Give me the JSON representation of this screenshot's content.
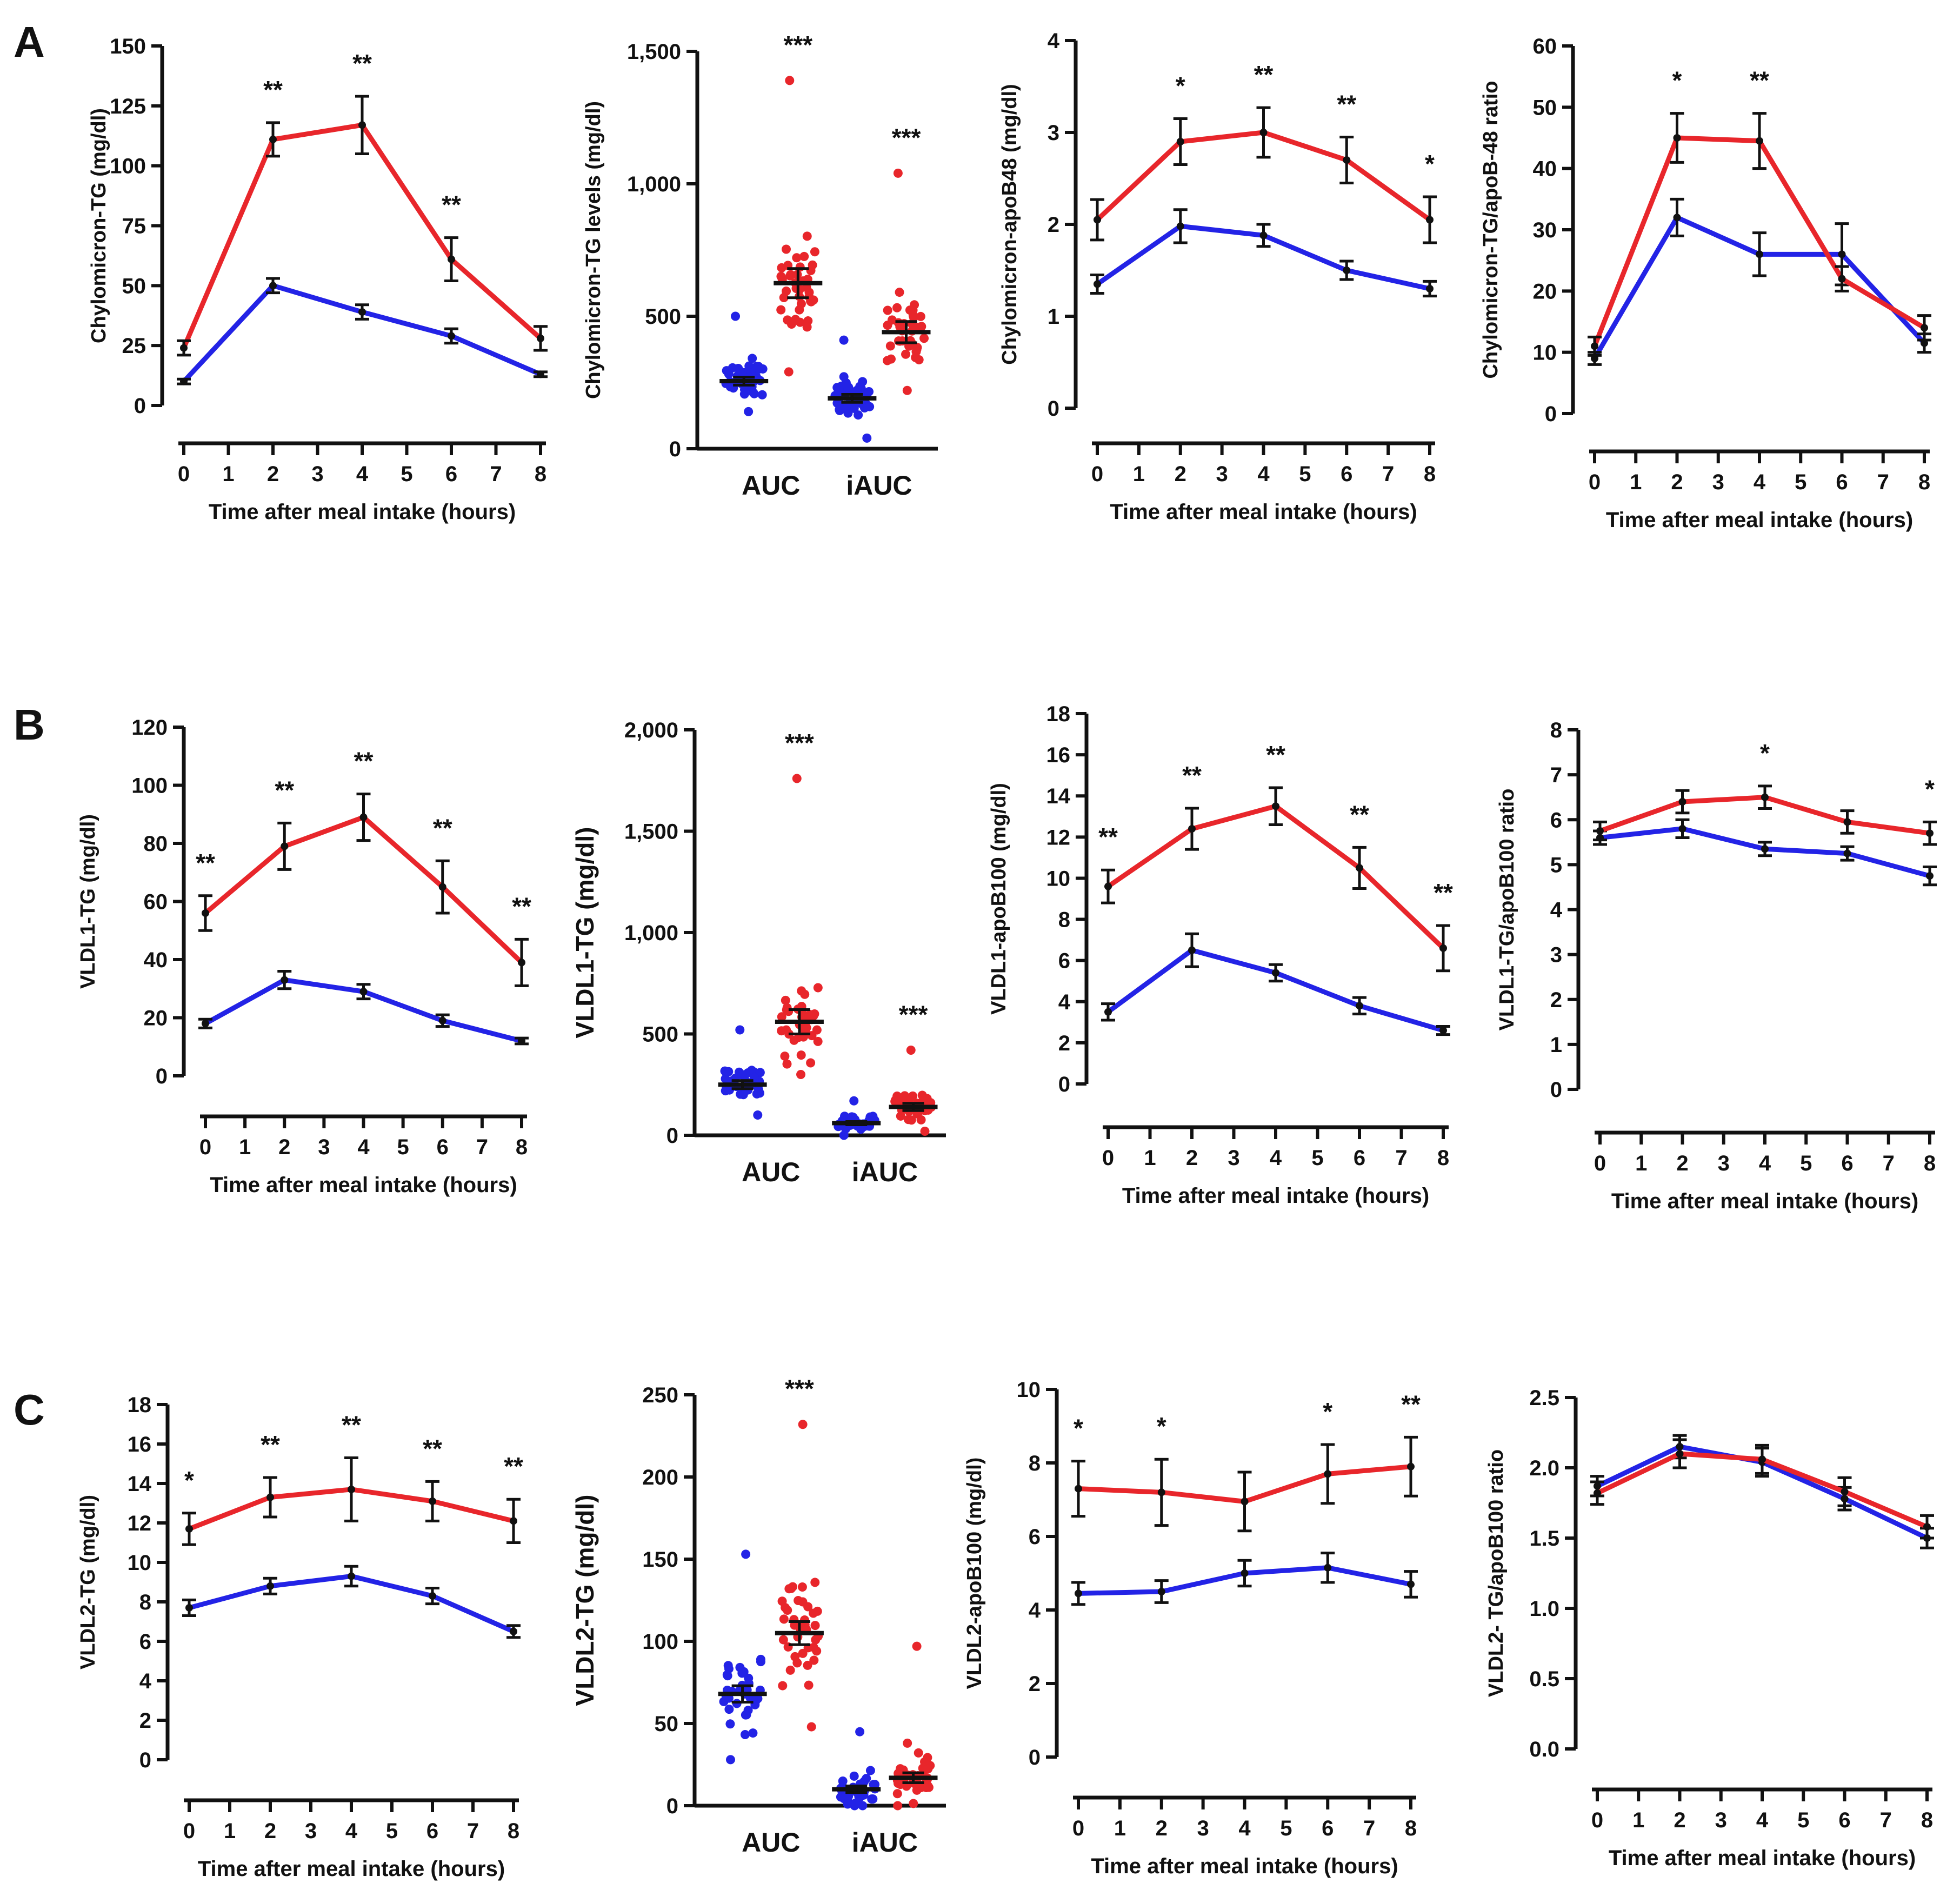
{
  "colors": {
    "group_red": "#e8262b",
    "group_blue": "#2323e6",
    "axis": "#111111"
  },
  "panel_labels": [
    "A",
    "B",
    "C"
  ],
  "chart_data": [
    {
      "id": "A1",
      "type": "line",
      "panel": "A",
      "ylabel": "Chylomicron-TG (mg/dl)",
      "xlabel": "Time after meal intake (hours)",
      "ylim": [
        0,
        150
      ],
      "yticks": [
        "0",
        "25",
        "50",
        "75",
        "100",
        "125",
        "150"
      ],
      "x": [
        0,
        2,
        4,
        6,
        8
      ],
      "xlim": [
        0,
        8
      ],
      "xticks": [
        "0",
        "1",
        "2",
        "3",
        "4",
        "5",
        "6",
        "7",
        "8"
      ],
      "series": [
        {
          "name": "red",
          "values": [
            24,
            111,
            117,
            61,
            28
          ],
          "err": [
            3,
            7,
            12,
            9,
            5
          ]
        },
        {
          "name": "blue",
          "values": [
            10,
            50,
            39,
            29,
            13
          ],
          "err": [
            1,
            3,
            3,
            3,
            1
          ]
        }
      ],
      "stars": [
        "",
        "**",
        "**",
        "**",
        ""
      ]
    },
    {
      "id": "A2",
      "type": "scatter",
      "panel": "A",
      "ylabel": "Chylomicron-TG levels (mg/dl)",
      "ylim": [
        0,
        1500
      ],
      "yticks": [
        "0",
        "500",
        "1,000",
        "1,500"
      ],
      "categories": [
        "AUC",
        "iAUC"
      ],
      "groups": [
        {
          "category": "AUC",
          "color": "blue",
          "mean": 255,
          "sem": 15,
          "spread": [
            140,
            500
          ]
        },
        {
          "category": "AUC",
          "color": "red",
          "mean": 625,
          "sem": 55,
          "spread": [
            290,
            1390
          ]
        },
        {
          "category": "iAUC",
          "color": "blue",
          "mean": 190,
          "sem": 15,
          "spread": [
            40,
            410
          ]
        },
        {
          "category": "iAUC",
          "color": "red",
          "mean": 440,
          "sem": 40,
          "spread": [
            220,
            1040
          ]
        }
      ],
      "stars": [
        "***",
        "***"
      ]
    },
    {
      "id": "A3",
      "type": "line",
      "panel": "A",
      "ylabel": "Chylomicron-apoB48 (mg/dl)",
      "xlabel": "Time after meal intake (hours)",
      "ylim": [
        0,
        4
      ],
      "yticks": [
        "0",
        "1",
        "2",
        "3",
        "4"
      ],
      "x": [
        0,
        2,
        4,
        6,
        8
      ],
      "xlim": [
        0,
        8
      ],
      "xticks": [
        "0",
        "1",
        "2",
        "3",
        "4",
        "5",
        "6",
        "7",
        "8"
      ],
      "series": [
        {
          "name": "red",
          "values": [
            2.05,
            2.9,
            3.0,
            2.7,
            2.05
          ],
          "err": [
            0.22,
            0.25,
            0.27,
            0.25,
            0.25
          ]
        },
        {
          "name": "blue",
          "values": [
            1.35,
            1.98,
            1.88,
            1.5,
            1.3
          ],
          "err": [
            0.1,
            0.18,
            0.12,
            0.1,
            0.08
          ]
        }
      ],
      "stars": [
        "",
        "*",
        "**",
        "**",
        "*"
      ]
    },
    {
      "id": "A4",
      "type": "line",
      "panel": "A",
      "ylabel": "Chylomicron-TG/apoB-48 ratio",
      "xlabel": "Time after meal intake (hours)",
      "ylim": [
        0,
        60
      ],
      "yticks": [
        "0",
        "10",
        "20",
        "30",
        "40",
        "50",
        "60"
      ],
      "x": [
        0,
        2,
        4,
        6,
        8
      ],
      "xlim": [
        0,
        8
      ],
      "xticks": [
        "0",
        "1",
        "2",
        "3",
        "4",
        "5",
        "6",
        "7",
        "8"
      ],
      "series": [
        {
          "name": "red",
          "values": [
            11,
            45,
            44.5,
            22,
            14
          ],
          "err": [
            1.5,
            4,
            4.5,
            2,
            2
          ]
        },
        {
          "name": "blue",
          "values": [
            9,
            32,
            26,
            26,
            11.5
          ],
          "err": [
            1,
            3,
            3.5,
            5,
            1.5
          ]
        }
      ],
      "stars": [
        "",
        "*",
        "**",
        "",
        ""
      ]
    },
    {
      "id": "B1",
      "type": "line",
      "panel": "B",
      "ylabel": "VLDL1-TG (mg/dl)",
      "xlabel": "Time after meal intake (hours)",
      "ylim": [
        0,
        120
      ],
      "yticks": [
        "0",
        "20",
        "40",
        "60",
        "80",
        "100",
        "120"
      ],
      "x": [
        0,
        2,
        4,
        6,
        8
      ],
      "xlim": [
        0,
        8
      ],
      "xticks": [
        "0",
        "1",
        "2",
        "3",
        "4",
        "5",
        "6",
        "7",
        "8"
      ],
      "series": [
        {
          "name": "red",
          "values": [
            56,
            79,
            89,
            65,
            39
          ],
          "err": [
            6,
            8,
            8,
            9,
            8
          ]
        },
        {
          "name": "blue",
          "values": [
            18,
            33,
            29,
            19,
            12
          ],
          "err": [
            1.5,
            3,
            2.5,
            2,
            1
          ]
        }
      ],
      "stars": [
        "**",
        "**",
        "**",
        "**",
        "**"
      ]
    },
    {
      "id": "B2",
      "type": "scatter",
      "panel": "B",
      "ylabel": "VLDL1-TG (mg/dl)",
      "ylim": [
        0,
        2000
      ],
      "yticks": [
        "0",
        "500",
        "1,000",
        "1,500",
        "2,000"
      ],
      "categories": [
        "AUC",
        "iAUC"
      ],
      "groups": [
        {
          "category": "AUC",
          "color": "blue",
          "mean": 250,
          "sem": 20,
          "spread": [
            100,
            520
          ]
        },
        {
          "category": "AUC",
          "color": "red",
          "mean": 560,
          "sem": 60,
          "spread": [
            300,
            1760
          ]
        },
        {
          "category": "iAUC",
          "color": "blue",
          "mean": 60,
          "sem": 8,
          "spread": [
            0,
            170
          ]
        },
        {
          "category": "iAUC",
          "color": "red",
          "mean": 140,
          "sem": 18,
          "spread": [
            20,
            420
          ]
        }
      ],
      "stars": [
        "***",
        "***"
      ]
    },
    {
      "id": "B3",
      "type": "line",
      "panel": "B",
      "ylabel": "VLDL1-apoB100 (mg/dl)",
      "xlabel": "Time after meal intake (hours)",
      "ylim": [
        0,
        18
      ],
      "yticks": [
        "0",
        "2",
        "4",
        "6",
        "8",
        "10",
        "12",
        "14",
        "16",
        "18"
      ],
      "x": [
        0,
        2,
        4,
        6,
        8
      ],
      "xlim": [
        0,
        8
      ],
      "xticks": [
        "0",
        "1",
        "2",
        "3",
        "4",
        "5",
        "6",
        "7",
        "8"
      ],
      "series": [
        {
          "name": "red",
          "values": [
            9.6,
            12.4,
            13.5,
            10.5,
            6.6
          ],
          "err": [
            0.8,
            1,
            0.9,
            1,
            1.1
          ]
        },
        {
          "name": "blue",
          "values": [
            3.5,
            6.5,
            5.4,
            3.8,
            2.6
          ],
          "err": [
            0.4,
            0.8,
            0.4,
            0.4,
            0.2
          ]
        }
      ],
      "stars": [
        "**",
        "**",
        "**",
        "**",
        "**"
      ]
    },
    {
      "id": "B4",
      "type": "line",
      "panel": "B",
      "ylabel": "VLDL1-TG/apoB100 ratio",
      "xlabel": "Time after meal intake (hours)",
      "ylim": [
        0,
        8
      ],
      "yticks": [
        "0",
        "1",
        "2",
        "3",
        "4",
        "5",
        "6",
        "7",
        "8"
      ],
      "x": [
        0,
        2,
        4,
        6,
        8
      ],
      "xlim": [
        0,
        8
      ],
      "xticks": [
        "0",
        "1",
        "2",
        "3",
        "4",
        "5",
        "6",
        "7",
        "8"
      ],
      "series": [
        {
          "name": "red",
          "values": [
            5.75,
            6.4,
            6.5,
            5.95,
            5.7
          ],
          "err": [
            0.2,
            0.25,
            0.25,
            0.25,
            0.25
          ]
        },
        {
          "name": "blue",
          "values": [
            5.6,
            5.8,
            5.35,
            5.25,
            4.75
          ],
          "err": [
            0.15,
            0.2,
            0.15,
            0.15,
            0.2
          ]
        }
      ],
      "stars": [
        "",
        "",
        "*",
        "",
        "*"
      ]
    },
    {
      "id": "C1",
      "type": "line",
      "panel": "C",
      "ylabel": "VLDL2-TG (mg/dl)",
      "xlabel": "Time after meal intake (hours)",
      "ylim": [
        0,
        18
      ],
      "yticks": [
        "0",
        "2",
        "4",
        "6",
        "8",
        "10",
        "12",
        "14",
        "16",
        "18"
      ],
      "x": [
        0,
        2,
        4,
        6,
        8
      ],
      "xlim": [
        0,
        8
      ],
      "xticks": [
        "0",
        "1",
        "2",
        "3",
        "4",
        "5",
        "6",
        "7",
        "8"
      ],
      "series": [
        {
          "name": "red",
          "values": [
            11.7,
            13.3,
            13.7,
            13.1,
            12.1
          ],
          "err": [
            0.8,
            1,
            1.6,
            1,
            1.1
          ]
        },
        {
          "name": "blue",
          "values": [
            7.7,
            8.8,
            9.3,
            8.3,
            6.5
          ],
          "err": [
            0.4,
            0.4,
            0.5,
            0.4,
            0.3
          ]
        }
      ],
      "stars": [
        "*",
        "**",
        "**",
        "**",
        "**"
      ]
    },
    {
      "id": "C2",
      "type": "scatter",
      "panel": "C",
      "ylabel": "VLDL2-TG (mg/dl)",
      "ylim": [
        0,
        250
      ],
      "yticks": [
        "0",
        "50",
        "100",
        "150",
        "200",
        "250"
      ],
      "categories": [
        "AUC",
        "iAUC"
      ],
      "groups": [
        {
          "category": "AUC",
          "color": "blue",
          "mean": 68,
          "sem": 5,
          "spread": [
            28,
            153
          ]
        },
        {
          "category": "AUC",
          "color": "red",
          "mean": 105,
          "sem": 7,
          "spread": [
            48,
            232
          ]
        },
        {
          "category": "iAUC",
          "color": "blue",
          "mean": 10,
          "sem": 2,
          "spread": [
            0,
            45
          ]
        },
        {
          "category": "iAUC",
          "color": "red",
          "mean": 17,
          "sem": 3,
          "spread": [
            0,
            97
          ]
        }
      ],
      "stars": [
        "***",
        ""
      ]
    },
    {
      "id": "C3",
      "type": "line",
      "panel": "C",
      "ylabel": "VLDL2-apoB100 (mg/dl)",
      "xlabel": "Time after meal intake (hours)",
      "ylim": [
        0,
        10
      ],
      "yticks": [
        "0",
        "2",
        "4",
        "6",
        "8",
        "10"
      ],
      "x": [
        0,
        2,
        4,
        6,
        8
      ],
      "xlim": [
        0,
        8
      ],
      "xticks": [
        "0",
        "1",
        "2",
        "3",
        "4",
        "5",
        "6",
        "7",
        "8"
      ],
      "series": [
        {
          "name": "red",
          "values": [
            7.3,
            7.2,
            6.95,
            7.7,
            7.9
          ],
          "err": [
            0.75,
            0.9,
            0.8,
            0.8,
            0.8
          ]
        },
        {
          "name": "blue",
          "values": [
            4.45,
            4.5,
            5.0,
            5.15,
            4.7
          ],
          "err": [
            0.3,
            0.3,
            0.35,
            0.4,
            0.35
          ]
        }
      ],
      "stars": [
        "*",
        "*",
        "",
        "*",
        "**"
      ]
    },
    {
      "id": "C4",
      "type": "line",
      "panel": "C",
      "ylabel": "VLDL2- TG/apoB100 ratio",
      "xlabel": "Time after meal intake (hours)",
      "ylim": [
        0,
        2.5
      ],
      "yticks": [
        "0.0",
        "0.5",
        "1.0",
        "1.5",
        "2.0",
        "2.5"
      ],
      "x": [
        0,
        2,
        4,
        6,
        8
      ],
      "xlim": [
        0,
        8
      ],
      "xticks": [
        "0",
        "1",
        "2",
        "3",
        "4",
        "5",
        "6",
        "7",
        "8"
      ],
      "series": [
        {
          "name": "red",
          "values": [
            1.82,
            2.1,
            2.06,
            1.83,
            1.58
          ],
          "err": [
            0.08,
            0.1,
            0.1,
            0.1,
            0.08
          ]
        },
        {
          "name": "blue",
          "values": [
            1.87,
            2.15,
            2.04,
            1.78,
            1.5
          ],
          "err": [
            0.07,
            0.08,
            0.1,
            0.08,
            0.07
          ]
        }
      ],
      "stars": [
        "",
        "",
        "",
        "",
        ""
      ]
    }
  ]
}
